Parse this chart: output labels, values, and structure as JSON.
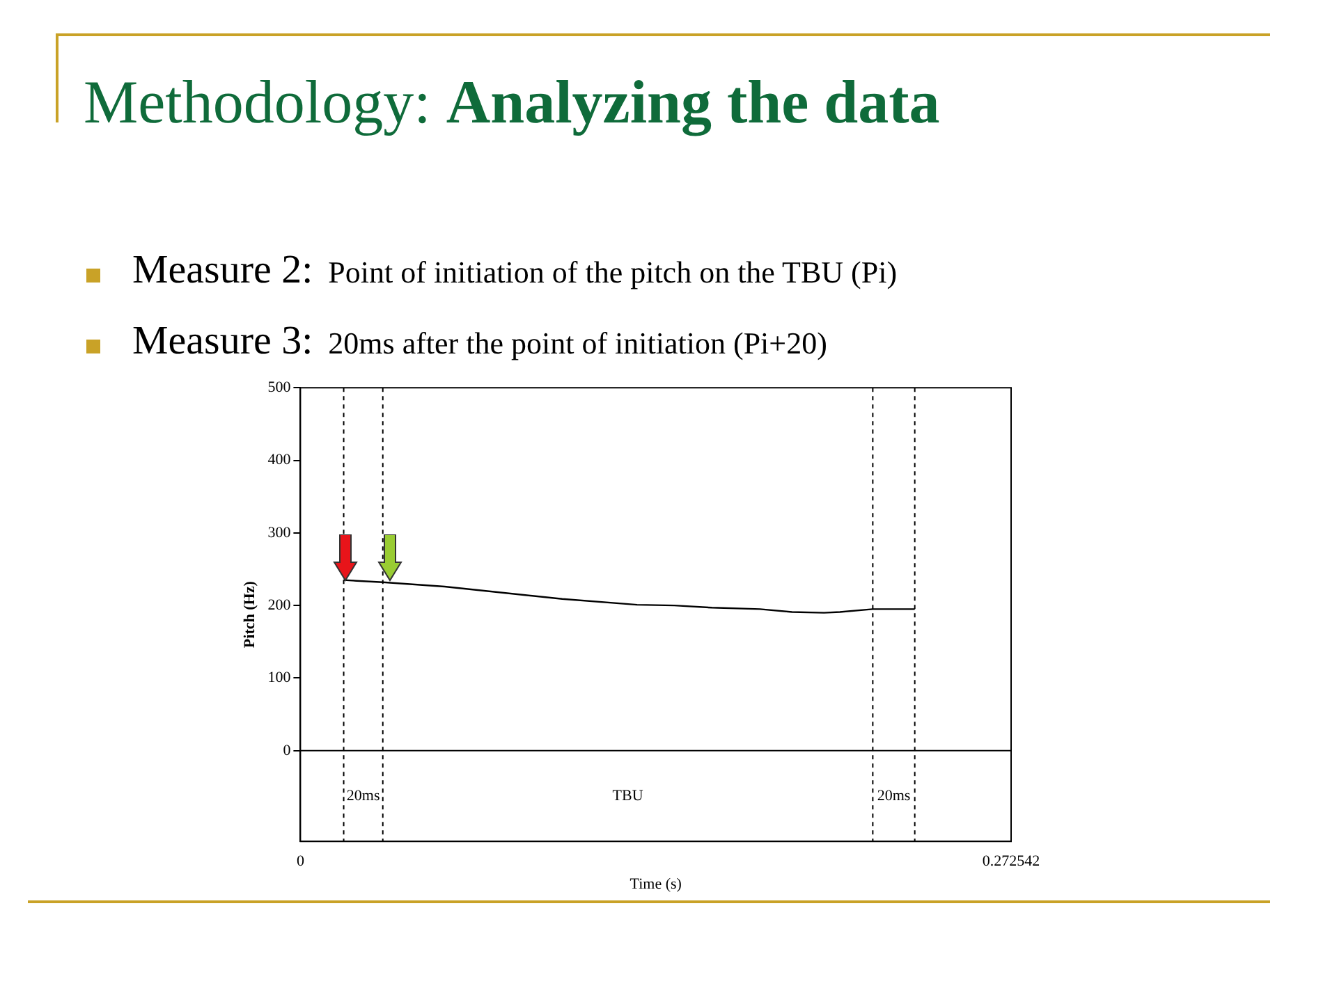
{
  "chart_data": {
    "type": "line",
    "title": "Methodology: Analyzing the data",
    "annotations": [
      "Measure 2: Point of initiation of the pitch on the TBU (Pi)",
      "Measure 3: 20ms after the point of initiation (Pi+20)",
      "20ms",
      "TBU",
      "20ms"
    ],
    "xlabel": "Time (s)",
    "ylabel": "Pitch (Hz)",
    "x": [
      0.0166,
      0.0316,
      0.0553,
      0.1004,
      0.1291,
      0.1434,
      0.1578,
      0.1762,
      0.1885,
      0.2008,
      0.2069,
      0.2195,
      0.2356
    ],
    "series": [
      {
        "color": "#000000",
        "values": [
          235,
          232,
          226,
          209,
          201,
          200,
          197,
          195,
          191,
          190,
          191,
          195,
          195
        ]
      }
    ],
    "xlim": [
      0,
      0.272542
    ],
    "xticks": [
      0,
      0.272542
    ],
    "ylim": [
      -125,
      500
    ],
    "yticks": [
      0,
      100,
      200,
      300,
      400,
      500
    ],
    "ref_lines": [
      {
        "axis": "y",
        "value": 0,
        "color": "#000000",
        "line_style": "solid"
      },
      {
        "axis": "x",
        "value": 0.0166,
        "color": "#000000",
        "line_style": "dashed"
      },
      {
        "axis": "x",
        "value": 0.0316,
        "color": "#000000",
        "line_style": "dashed"
      },
      {
        "axis": "x",
        "value": 0.2195,
        "color": "#000000",
        "line_style": "dashed"
      },
      {
        "axis": "x",
        "value": 0.2356,
        "color": "#000000",
        "line_style": "dashed"
      }
    ],
    "grid": false,
    "legend": false,
    "marker": "none",
    "line_style": "solid"
  }
}
